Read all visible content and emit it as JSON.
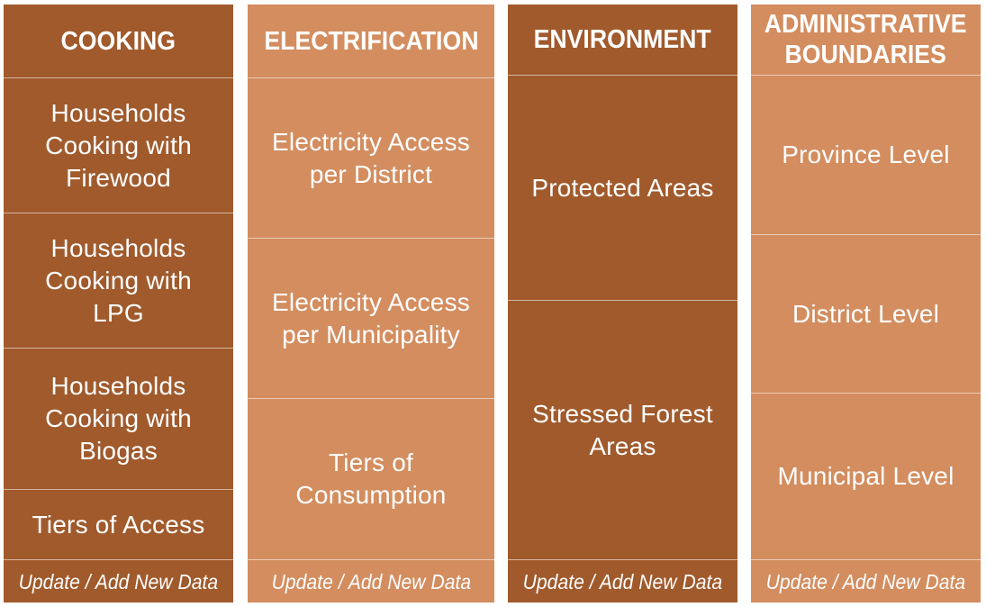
{
  "columns": [
    {
      "header": "COOKING",
      "items": [
        {
          "label": "Households\nCooking with\nFirewood"
        },
        {
          "label": "Households\nCooking with\nLPG"
        },
        {
          "label": "Households\nCooking with\nBiogas"
        },
        {
          "label": "Tiers of Access"
        }
      ],
      "update_label": "Update / Add New Data"
    },
    {
      "header": "ELECTRIFICATION",
      "items": [
        {
          "label": "Electricity Access\nper District"
        },
        {
          "label": "Electricity Access\nper Municipality"
        },
        {
          "label": "Tiers of\nConsumption"
        }
      ],
      "update_label": "Update / Add New Data"
    },
    {
      "header": "ENVIRONMENT",
      "items": [
        {
          "label": "Protected Areas"
        },
        {
          "label": "Stressed Forest\nAreas"
        }
      ],
      "update_label": "Update / Add New Data"
    },
    {
      "header": "ADMINISTRATIVE\nBOUNDARIES",
      "items": [
        {
          "label": "Province Level"
        },
        {
          "label": "District Level"
        },
        {
          "label": "Municipal Level"
        }
      ],
      "update_label": "Update / Add New Data"
    }
  ],
  "colors": {
    "dark": "#a05a2c",
    "light": "#d38d5f",
    "text": "#ffffff"
  }
}
